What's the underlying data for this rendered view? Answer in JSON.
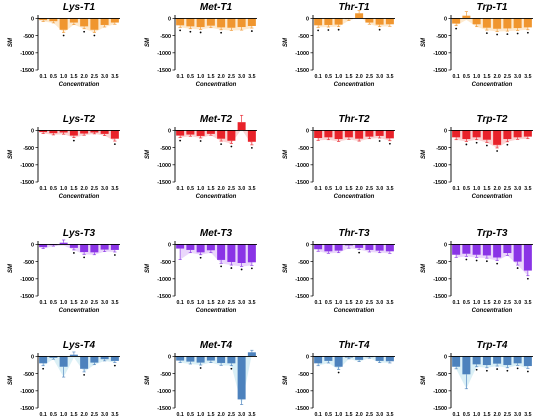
{
  "figure": {
    "x_label": "Concentration",
    "y_label": "SM",
    "bar_colors": [
      "#f0962f",
      "#e8222a",
      "#8a34e6",
      "#4d82bd"
    ],
    "fill_colors": [
      "#fce3c2",
      "#f9c9c9",
      "#e5cdfa",
      "#d2ecf4"
    ]
  },
  "chart_data": [
    {
      "type": "bar",
      "title": "Lys-T1",
      "categories": [
        "0.1",
        "0.5",
        "1.0",
        "1.5",
        "2.0",
        "2.5",
        "3.0",
        "3.5"
      ],
      "series": [
        {
          "values": [
            -50,
            -80,
            -330,
            -120,
            -230,
            -330,
            -190,
            -120
          ]
        }
      ],
      "errors": [
        40,
        50,
        80,
        60,
        70,
        80,
        60,
        50
      ],
      "significant": [
        false,
        false,
        true,
        false,
        true,
        true,
        false,
        false
      ],
      "ylim": [
        -1500,
        100
      ],
      "yticks": [
        0,
        -500,
        -1000,
        -1500
      ]
    },
    {
      "type": "bar",
      "title": "Met-T1",
      "categories": [
        "0.1",
        "0.5",
        "1.0",
        "1.5",
        "2.0",
        "2.5",
        "3.0",
        "3.5"
      ],
      "series": [
        {
          "values": [
            -200,
            -230,
            -250,
            -210,
            -260,
            -270,
            -250,
            -220
          ]
        }
      ],
      "errors": [
        60,
        70,
        70,
        60,
        70,
        80,
        90,
        60
      ],
      "significant": [
        true,
        true,
        true,
        false,
        true,
        false,
        false,
        true
      ],
      "ylim": [
        -1500,
        100
      ],
      "yticks": [
        0,
        -500,
        -1000,
        -1500
      ]
    },
    {
      "type": "bar",
      "title": "Thr-T1",
      "categories": [
        "0.1",
        "0.5",
        "1.0",
        "1.5",
        "2.0",
        "2.5",
        "3.0",
        "3.5"
      ],
      "series": [
        {
          "values": [
            -200,
            -190,
            -180,
            -20,
            150,
            -120,
            -180,
            -170
          ]
        }
      ],
      "errors": [
        60,
        60,
        60,
        40,
        80,
        50,
        60,
        60
      ],
      "significant": [
        true,
        true,
        true,
        false,
        false,
        false,
        true,
        false
      ],
      "ylim": [
        -1500,
        100
      ],
      "yticks": [
        0,
        -500,
        -1000,
        -1500
      ]
    },
    {
      "type": "bar",
      "title": "Trp-T1",
      "categories": [
        "0.1",
        "0.5",
        "1.0",
        "1.5",
        "2.0",
        "2.5",
        "3.0",
        "3.5"
      ],
      "series": [
        {
          "values": [
            -150,
            80,
            -170,
            -270,
            -300,
            -290,
            -280,
            -260
          ]
        }
      ],
      "errors": [
        60,
        120,
        70,
        70,
        80,
        80,
        70,
        70
      ],
      "significant": [
        true,
        false,
        false,
        true,
        true,
        true,
        true,
        true
      ],
      "ylim": [
        -1500,
        100
      ],
      "yticks": [
        0,
        -500,
        -1000,
        -1500
      ]
    },
    {
      "type": "bar",
      "title": "Lys-T2",
      "categories": [
        "0.1",
        "0.5",
        "1.0",
        "1.5",
        "2.0",
        "2.5",
        "3.0",
        "3.5"
      ],
      "series": [
        {
          "values": [
            -50,
            -80,
            -60,
            -150,
            -90,
            -60,
            -100,
            -240
          ]
        }
      ],
      "errors": [
        40,
        50,
        50,
        60,
        50,
        40,
        50,
        70
      ],
      "significant": [
        false,
        false,
        false,
        true,
        false,
        false,
        false,
        true
      ],
      "ylim": [
        -1500,
        100
      ],
      "yticks": [
        0,
        -500,
        -1000,
        -1500
      ]
    },
    {
      "type": "bar",
      "title": "Met-T2",
      "categories": [
        "0.1",
        "0.5",
        "1.0",
        "1.5",
        "2.0",
        "2.5",
        "3.0",
        "3.5"
      ],
      "series": [
        {
          "values": [
            -150,
            -120,
            -160,
            -100,
            -240,
            -300,
            240,
            -330
          ]
        }
      ],
      "errors": [
        60,
        50,
        60,
        40,
        70,
        80,
        200,
        90
      ],
      "significant": [
        true,
        false,
        true,
        false,
        true,
        true,
        false,
        true
      ],
      "ylim": [
        -1500,
        100
      ],
      "yticks": [
        0,
        -500,
        -1000,
        -1500
      ]
    },
    {
      "type": "bar",
      "title": "Thr-T2",
      "categories": [
        "0.1",
        "0.5",
        "1.0",
        "1.5",
        "2.0",
        "2.5",
        "3.0",
        "3.5"
      ],
      "series": [
        {
          "values": [
            -220,
            -200,
            -250,
            -200,
            -240,
            -180,
            -160,
            -230
          ]
        }
      ],
      "errors": [
        70,
        70,
        70,
        60,
        70,
        60,
        60,
        70
      ],
      "significant": [
        false,
        false,
        false,
        false,
        false,
        false,
        true,
        true
      ],
      "ylim": [
        -1500,
        100
      ],
      "yticks": [
        0,
        -500,
        -1000,
        -1500
      ]
    },
    {
      "type": "bar",
      "title": "Trp-T2",
      "categories": [
        "0.1",
        "0.5",
        "1.0",
        "1.5",
        "2.0",
        "2.5",
        "3.0",
        "3.5"
      ],
      "series": [
        {
          "values": [
            -200,
            -250,
            -200,
            -270,
            -420,
            -250,
            -200,
            -180
          ]
        }
      ],
      "errors": [
        70,
        70,
        70,
        80,
        90,
        80,
        60,
        60
      ],
      "significant": [
        false,
        true,
        true,
        true,
        true,
        true,
        false,
        false
      ],
      "ylim": [
        -1500,
        100
      ],
      "yticks": [
        0,
        -500,
        -1000,
        -1500
      ]
    },
    {
      "type": "bar",
      "title": "Lys-T3",
      "categories": [
        "0.1",
        "0.5",
        "1.0",
        "1.5",
        "2.0",
        "2.5",
        "3.0",
        "3.5"
      ],
      "series": [
        {
          "values": [
            -80,
            -20,
            50,
            -100,
            -220,
            -230,
            -150,
            -160
          ]
        }
      ],
      "errors": [
        40,
        30,
        80,
        60,
        70,
        70,
        60,
        60
      ],
      "significant": [
        false,
        false,
        false,
        true,
        true,
        false,
        false,
        true
      ],
      "ylim": [
        -1500,
        100
      ],
      "yticks": [
        0,
        -500,
        -1000,
        -1500
      ]
    },
    {
      "type": "bar",
      "title": "Met-T3",
      "categories": [
        "0.1",
        "0.5",
        "1.0",
        "1.5",
        "2.0",
        "2.5",
        "3.0",
        "3.5"
      ],
      "series": [
        {
          "values": [
            -120,
            -160,
            -230,
            -170,
            -450,
            -510,
            -540,
            -520
          ]
        }
      ],
      "errors": [
        320,
        80,
        70,
        70,
        100,
        90,
        100,
        90
      ],
      "significant": [
        false,
        false,
        true,
        false,
        true,
        true,
        true,
        true
      ],
      "ylim": [
        -1500,
        100
      ],
      "yticks": [
        0,
        -500,
        -1000,
        -1500
      ]
    },
    {
      "type": "bar",
      "title": "Thr-T3",
      "categories": [
        "0.1",
        "0.5",
        "1.0",
        "1.5",
        "2.0",
        "2.5",
        "3.0",
        "3.5"
      ],
      "series": [
        {
          "values": [
            -140,
            -200,
            -180,
            -30,
            -100,
            -160,
            -180,
            -200
          ]
        }
      ],
      "errors": [
        60,
        60,
        60,
        80,
        50,
        60,
        60,
        60
      ],
      "significant": [
        false,
        false,
        false,
        false,
        true,
        false,
        false,
        false
      ],
      "ylim": [
        -1500,
        100
      ],
      "yticks": [
        0,
        -500,
        -1000,
        -1500
      ]
    },
    {
      "type": "bar",
      "title": "Trp-T3",
      "categories": [
        "0.1",
        "0.5",
        "1.0",
        "1.5",
        "2.0",
        "2.5",
        "3.0",
        "3.5"
      ],
      "series": [
        {
          "values": [
            -300,
            -270,
            -300,
            -320,
            -380,
            -250,
            -500,
            -760
          ]
        }
      ],
      "errors": [
        80,
        80,
        80,
        80,
        90,
        70,
        100,
        150
      ],
      "significant": [
        false,
        true,
        true,
        true,
        true,
        false,
        true,
        true
      ],
      "ylim": [
        -1500,
        100
      ],
      "yticks": [
        0,
        -500,
        -1000,
        -1500
      ]
    },
    {
      "type": "bar",
      "title": "Lys-T4",
      "categories": [
        "0.1",
        "0.5",
        "1.0",
        "1.5",
        "2.0",
        "2.5",
        "3.0",
        "3.5"
      ],
      "series": [
        {
          "values": [
            -200,
            -40,
            -300,
            50,
            -360,
            -180,
            -80,
            -130
          ]
        }
      ],
      "errors": [
        70,
        40,
        300,
        80,
        90,
        60,
        50,
        50
      ],
      "significant": [
        true,
        false,
        false,
        false,
        true,
        false,
        false,
        true
      ],
      "ylim": [
        -1500,
        100
      ],
      "yticks": [
        0,
        -500,
        -1000,
        -1500
      ]
    },
    {
      "type": "bar",
      "title": "Met-T4",
      "categories": [
        "0.1",
        "0.5",
        "1.0",
        "1.5",
        "2.0",
        "2.5",
        "3.0",
        "3.5"
      ],
      "series": [
        {
          "values": [
            -120,
            -150,
            -180,
            -120,
            -190,
            -200,
            -1250,
            120
          ]
        }
      ],
      "errors": [
        60,
        70,
        70,
        60,
        70,
        70,
        150,
        60
      ],
      "significant": [
        false,
        false,
        true,
        false,
        false,
        true,
        false,
        false
      ],
      "ylim": [
        -1500,
        100
      ],
      "yticks": [
        0,
        -500,
        -1000,
        -1500
      ]
    },
    {
      "type": "bar",
      "title": "Thr-T4",
      "categories": [
        "0.1",
        "0.5",
        "1.0",
        "1.5",
        "2.0",
        "2.5",
        "3.0",
        "3.5"
      ],
      "series": [
        {
          "values": [
            -200,
            -130,
            -300,
            -30,
            -100,
            -20,
            -130,
            -140
          ]
        }
      ],
      "errors": [
        70,
        60,
        80,
        40,
        50,
        30,
        50,
        50
      ],
      "significant": [
        false,
        false,
        true,
        false,
        false,
        false,
        false,
        false
      ],
      "ylim": [
        -1500,
        100
      ],
      "yticks": [
        0,
        -500,
        -1000,
        -1500
      ]
    },
    {
      "type": "bar",
      "title": "Trp-T4",
      "categories": [
        "0.1",
        "0.5",
        "1.0",
        "1.5",
        "2.0",
        "2.5",
        "3.0",
        "3.5"
      ],
      "series": [
        {
          "values": [
            -300,
            -520,
            -230,
            -250,
            -210,
            -250,
            -200,
            -280
          ]
        }
      ],
      "errors": [
        60,
        420,
        70,
        80,
        70,
        80,
        60,
        70
      ],
      "significant": [
        false,
        false,
        true,
        true,
        true,
        true,
        true,
        true
      ],
      "ylim": [
        -1500,
        100
      ],
      "yticks": [
        0,
        -500,
        -1000,
        -1500
      ]
    }
  ]
}
